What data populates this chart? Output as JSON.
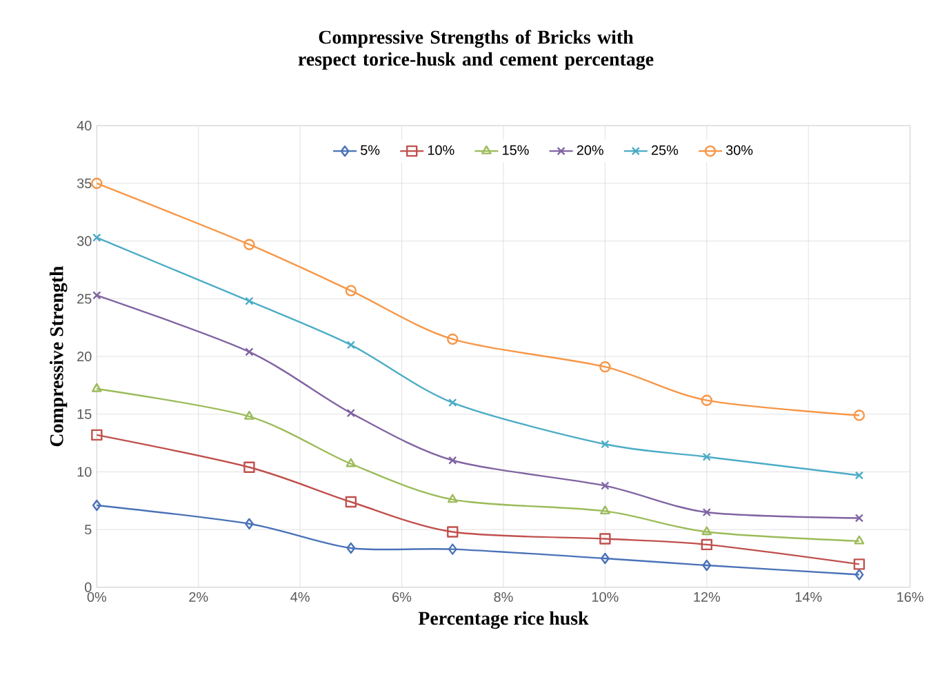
{
  "chart_data": {
    "type": "line",
    "title": "Compressive Strengths of Bricks with respect torice-husk and cement percentage",
    "xlabel": "Percentage rice husk",
    "ylabel": "Compressive Strength",
    "x": [
      0,
      3,
      5,
      7,
      10,
      12,
      15
    ],
    "series": [
      {
        "name": "5%",
        "color": "#4a72b8",
        "marker": "diamond",
        "values": [
          7.1,
          5.5,
          3.4,
          3.3,
          2.5,
          1.9,
          1.1
        ]
      },
      {
        "name": "10%",
        "color": "#c0504d",
        "marker": "square",
        "values": [
          13.2,
          10.4,
          7.4,
          4.8,
          4.2,
          3.7,
          2.0
        ]
      },
      {
        "name": "15%",
        "color": "#9bbb59",
        "marker": "triangle",
        "values": [
          17.2,
          14.8,
          10.7,
          7.6,
          6.6,
          4.8,
          4.0
        ]
      },
      {
        "name": "20%",
        "color": "#8064a2",
        "marker": "cross",
        "values": [
          25.3,
          20.4,
          15.1,
          11.0,
          8.8,
          6.5,
          6.0
        ]
      },
      {
        "name": "25%",
        "color": "#4bacc6",
        "marker": "cross",
        "values": [
          30.3,
          24.8,
          21.0,
          16.0,
          12.4,
          11.3,
          9.7
        ]
      },
      {
        "name": "30%",
        "color": "#f79646",
        "marker": "circle",
        "values": [
          35.0,
          29.7,
          25.7,
          21.5,
          19.1,
          16.2,
          14.9
        ]
      }
    ],
    "xlim": [
      0,
      16
    ],
    "xticks": [
      {
        "value": 0,
        "label": "0%"
      },
      {
        "value": 2,
        "label": "2%"
      },
      {
        "value": 4,
        "label": "4%"
      },
      {
        "value": 6,
        "label": "6%"
      },
      {
        "value": 8,
        "label": "8%"
      },
      {
        "value": 10,
        "label": "10%"
      },
      {
        "value": 12,
        "label": "12%"
      },
      {
        "value": 14,
        "label": "14%"
      },
      {
        "value": 16,
        "label": "16%"
      }
    ],
    "ylim": [
      0,
      40
    ],
    "yticks": [
      0,
      5,
      10,
      15,
      20,
      25,
      30,
      35,
      40
    ],
    "grid": true,
    "legend": "top",
    "line_style": "solid"
  }
}
